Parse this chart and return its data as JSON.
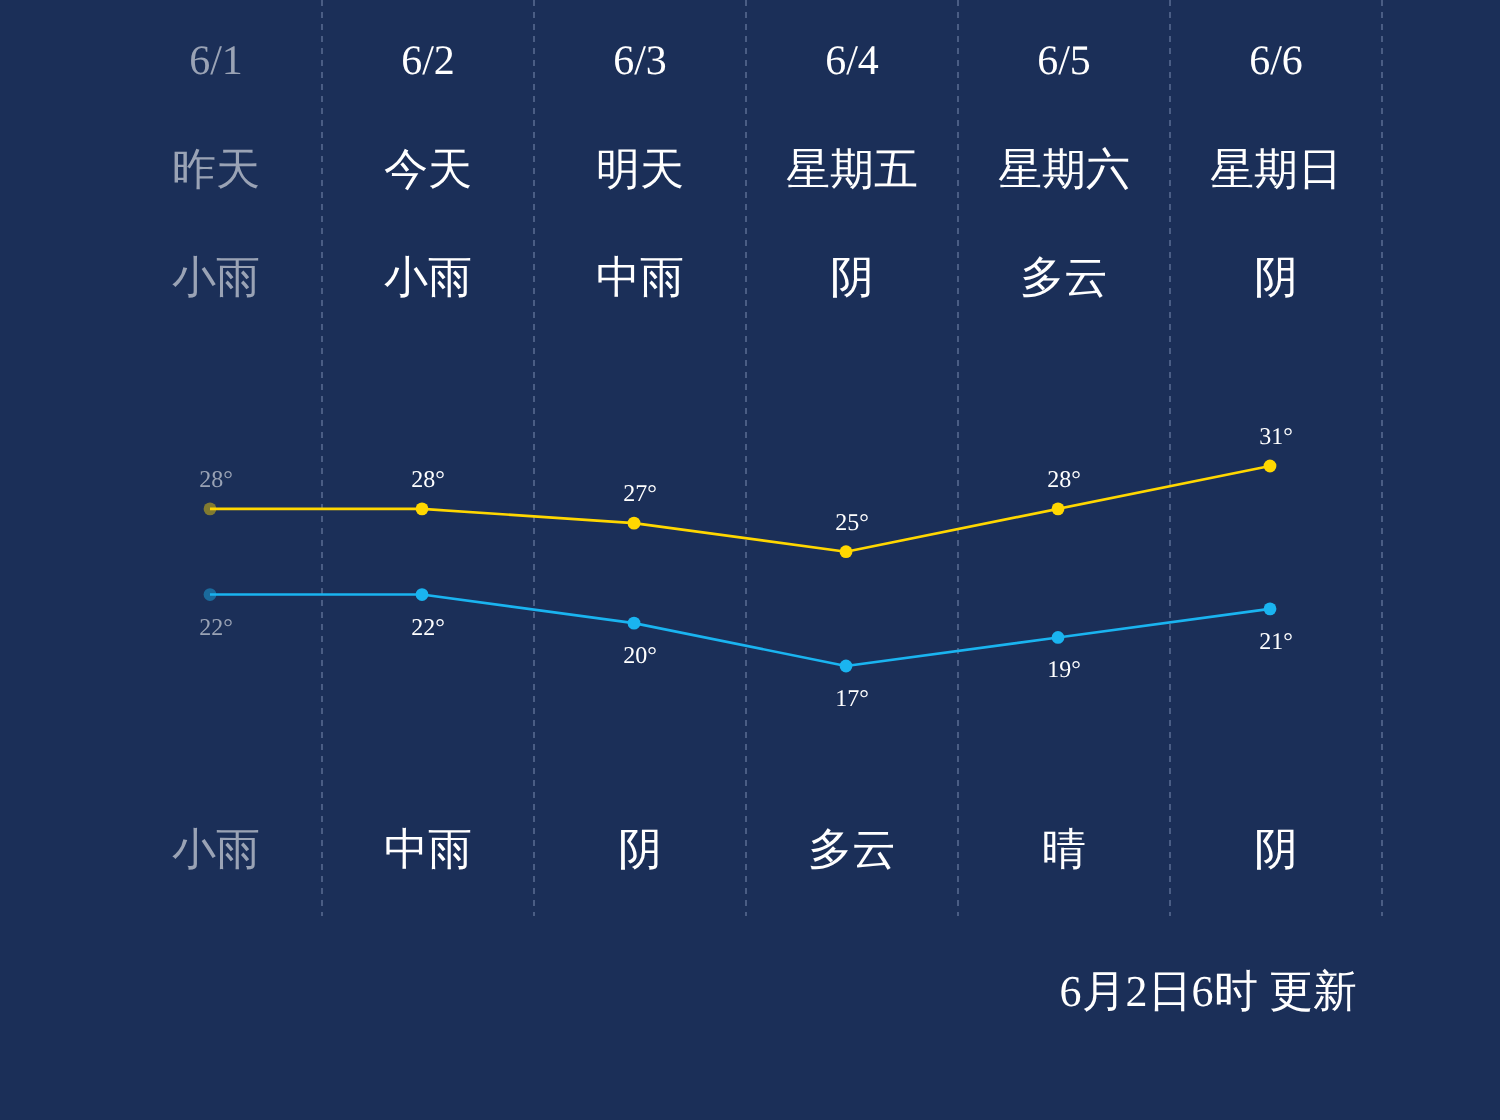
{
  "chart_data": {
    "type": "line",
    "categories": [
      "6/1",
      "6/2",
      "6/3",
      "6/4",
      "6/5",
      "6/6"
    ],
    "series": [
      {
        "color": "#ffd700",
        "values": [
          28,
          28,
          27,
          25,
          28,
          31
        ],
        "value_labels": [
          "28°",
          "28°",
          "27°",
          "25°",
          "28°",
          "31°"
        ]
      },
      {
        "color": "#1ab4f0",
        "values": [
          22,
          22,
          20,
          17,
          19,
          21
        ],
        "value_labels": [
          "22°",
          "22°",
          "20°",
          "17°",
          "19°",
          "21°"
        ]
      }
    ],
    "marker": "circle",
    "grid": "x",
    "annotations": [
      "昨天",
      "今天",
      "明天",
      "星期五",
      "星期六",
      "星期日",
      "小雨",
      "小雨",
      "中雨",
      "阴",
      "多云",
      "阴",
      "小雨",
      "中雨",
      "阴",
      "多云",
      "晴",
      "阴",
      "6月2日6时 更新"
    ]
  }
}
